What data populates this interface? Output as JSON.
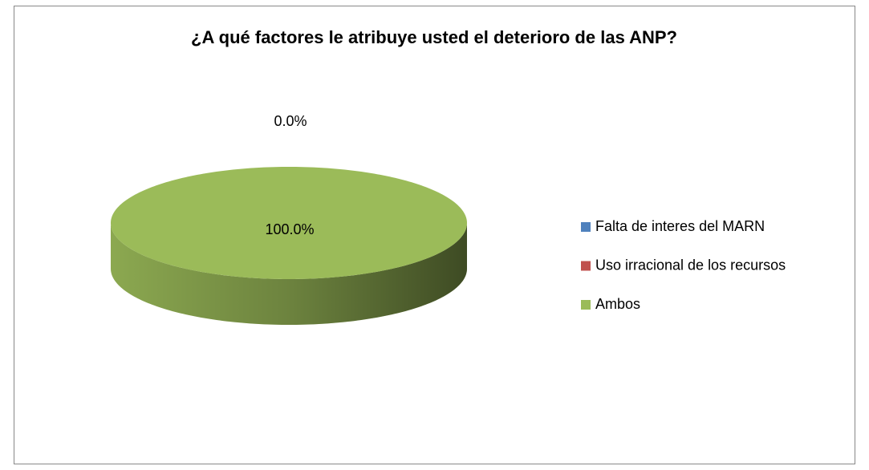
{
  "chart_data": {
    "type": "pie",
    "title": "¿A qué factores le atribuye usted el deterioro de las ANP?",
    "categories": [
      "Falta de interes del MARN",
      "Uso irracional de los recursos",
      "Ambos"
    ],
    "values": [
      0,
      0,
      100
    ],
    "value_labels": [
      "0.0%",
      null,
      "100.0%"
    ],
    "colors": [
      "#4f81bd",
      "#c0504d",
      "#9bbb59"
    ],
    "legend": "right"
  }
}
